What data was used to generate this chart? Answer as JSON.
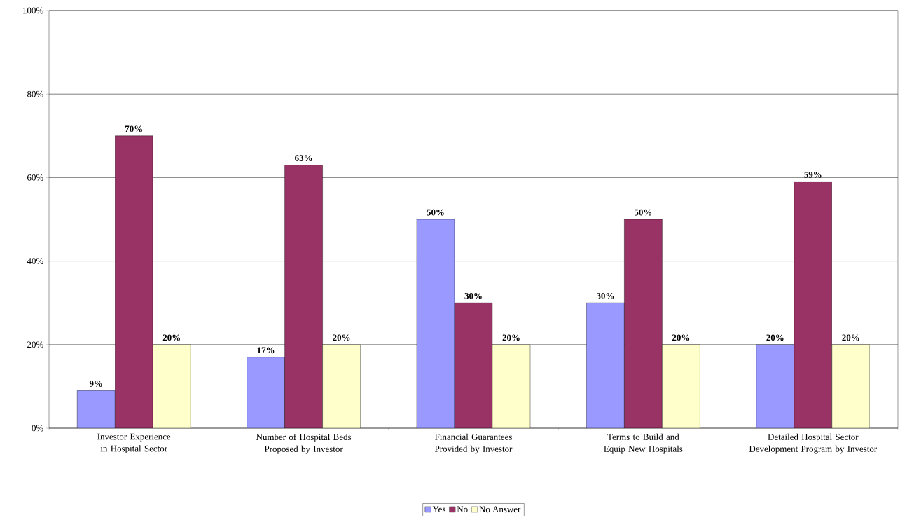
{
  "chart_data": {
    "type": "bar",
    "categories": [
      "Investor Experience in Hospital Sector",
      "Number of Hospital Beds Proposed by Investor",
      "Financial Guarantees Provided by Investor",
      "Terms to Build and Equip New Hospitals",
      "Detailed Hospital Sector Development Program by Investor"
    ],
    "series": [
      {
        "name": "Yes",
        "color": "#9999ff",
        "values": [
          9,
          17,
          50,
          30,
          20
        ],
        "value_labels": [
          "9%",
          "17%",
          "50%",
          "30%",
          "20%"
        ]
      },
      {
        "name": "No",
        "color": "#993366",
        "values": [
          70,
          63,
          30,
          50,
          59
        ],
        "value_labels": [
          "70%",
          "63%",
          "30%",
          "50%",
          "59%"
        ]
      },
      {
        "name": "No Answer",
        "color": "#ffffcc",
        "values": [
          20,
          20,
          20,
          20,
          20
        ],
        "value_labels": [
          "20%",
          "20%",
          "20%",
          "20%",
          "20%"
        ]
      }
    ],
    "ylim": [
      0,
      100
    ],
    "yticks": [
      {
        "value": 0,
        "label": "0%"
      },
      {
        "value": 20,
        "label": "20%"
      },
      {
        "value": 40,
        "label": "40%"
      },
      {
        "value": 60,
        "label": "60%"
      },
      {
        "value": 80,
        "label": "80%"
      },
      {
        "value": 100,
        "label": "100%"
      }
    ],
    "grid": "y",
    "legend": "bottom"
  }
}
